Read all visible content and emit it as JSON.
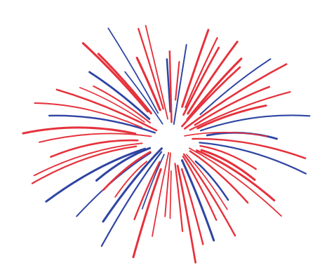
{
  "illustration": {
    "subject": "firework-burst",
    "colors": {
      "red": "#e5323c",
      "blue": "#2f45a3",
      "background": "#ffffff"
    },
    "star_icon": "star-icon"
  }
}
